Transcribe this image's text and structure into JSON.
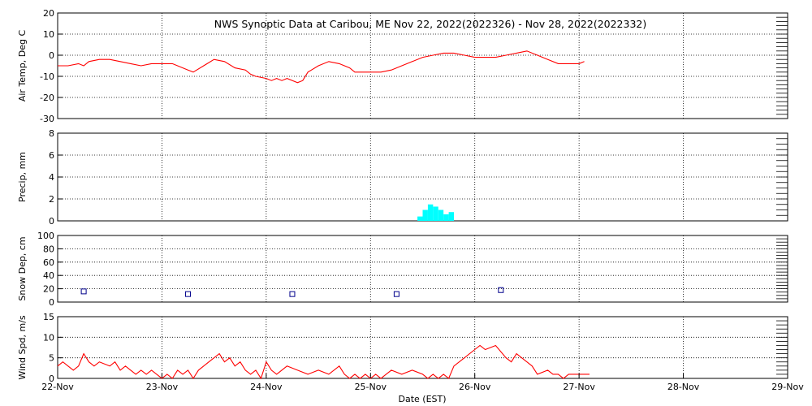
{
  "title": "NWS Synoptic Data at Caribou, ME   Nov 22, 2022(2022326) - Nov 28, 2022(2022332)",
  "x_axis": {
    "label": "Date (EST)",
    "ticks": [
      "22-Nov",
      "23-Nov",
      "24-Nov",
      "25-Nov",
      "26-Nov",
      "27-Nov",
      "28-Nov",
      "29-Nov"
    ]
  },
  "colors": {
    "air_temp": "#ff0000",
    "precip": "#00ffff",
    "snow": "#00008b",
    "wind": "#ff0000",
    "grid": "#000000"
  },
  "chart_data": [
    {
      "type": "line",
      "name": "air_temp",
      "ylabel": "Air Temp, Deg C",
      "ylim": [
        -30,
        20
      ],
      "yticks": [
        "20",
        "10",
        "0",
        "-10",
        "-20",
        "-30"
      ],
      "grid": true,
      "x_days": [
        0.0,
        0.1,
        0.2,
        0.25,
        0.3,
        0.4,
        0.5,
        0.6,
        0.7,
        0.8,
        0.9,
        1.0,
        1.1,
        1.2,
        1.25,
        1.3,
        1.4,
        1.5,
        1.6,
        1.7,
        1.8,
        1.85,
        1.9,
        2.0,
        2.05,
        2.1,
        2.15,
        2.2,
        2.3,
        2.35,
        2.4,
        2.5,
        2.6,
        2.7,
        2.8,
        2.85,
        2.9,
        3.0,
        3.1,
        3.2,
        3.3,
        3.4,
        3.5,
        3.6,
        3.7,
        3.8,
        3.9,
        4.0,
        4.1,
        4.2,
        4.3,
        4.4,
        4.5,
        4.6,
        4.7,
        4.8,
        4.9,
        5.0,
        5.05
      ],
      "values": [
        -5,
        -5,
        -4,
        -5,
        -3,
        -2,
        -2,
        -3,
        -4,
        -5,
        -4,
        -4,
        -4,
        -6,
        -7,
        -8,
        -5,
        -2,
        -3,
        -6,
        -7,
        -9,
        -10,
        -11,
        -12,
        -11,
        -12,
        -11,
        -13,
        -12,
        -8,
        -5,
        -3,
        -4,
        -6,
        -8,
        -8,
        -8,
        -8,
        -7,
        -5,
        -3,
        -1,
        0,
        1,
        1,
        0,
        -1,
        -1,
        -1,
        0,
        1,
        2,
        0,
        -2,
        -4,
        -4,
        -4,
        -3
      ]
    },
    {
      "type": "bar",
      "name": "precip",
      "ylabel": "Precip, mm",
      "ylim": [
        0,
        8
      ],
      "yticks": [
        "8",
        "6",
        "4",
        "2",
        "0"
      ],
      "grid": true,
      "x_days": [
        3.45,
        3.5,
        3.55,
        3.6,
        3.65,
        3.7,
        3.75
      ],
      "values": [
        0.4,
        1.0,
        1.5,
        1.3,
        1.0,
        0.6,
        0.8
      ]
    },
    {
      "type": "scatter",
      "name": "snow_depth",
      "ylabel": "Snow Dep, cm",
      "ylim": [
        0,
        100
      ],
      "yticks": [
        "100",
        "80",
        "60",
        "40",
        "20",
        "0"
      ],
      "grid": true,
      "x_days": [
        0.25,
        1.25,
        2.25,
        3.25,
        4.25
      ],
      "values": [
        16,
        12,
        12,
        12,
        18
      ]
    },
    {
      "type": "line",
      "name": "wind_speed",
      "ylabel": "Wind Spd, m/s",
      "ylim": [
        0,
        15
      ],
      "yticks": [
        "15",
        "10",
        "5",
        "0"
      ],
      "grid": true,
      "x_days": [
        0.0,
        0.05,
        0.1,
        0.15,
        0.2,
        0.25,
        0.3,
        0.35,
        0.4,
        0.5,
        0.55,
        0.6,
        0.65,
        0.7,
        0.75,
        0.8,
        0.85,
        0.9,
        1.0,
        1.05,
        1.1,
        1.15,
        1.2,
        1.25,
        1.3,
        1.35,
        1.4,
        1.45,
        1.5,
        1.55,
        1.6,
        1.65,
        1.7,
        1.75,
        1.8,
        1.85,
        1.9,
        1.95,
        2.0,
        2.05,
        2.1,
        2.2,
        2.3,
        2.4,
        2.5,
        2.6,
        2.7,
        2.75,
        2.8,
        2.85,
        2.9,
        2.95,
        3.0,
        3.05,
        3.1,
        3.15,
        3.2,
        3.3,
        3.4,
        3.5,
        3.55,
        3.6,
        3.65,
        3.7,
        3.75,
        3.8,
        3.9,
        4.0,
        4.05,
        4.1,
        4.2,
        4.3,
        4.35,
        4.4,
        4.45,
        4.5,
        4.55,
        4.6,
        4.7,
        4.75,
        4.8,
        4.85,
        4.9,
        5.0,
        5.1
      ],
      "values": [
        3,
        4,
        3,
        2,
        3,
        6,
        4,
        3,
        4,
        3,
        4,
        2,
        3,
        2,
        1,
        2,
        1,
        2,
        0,
        1,
        0,
        2,
        1,
        2,
        0,
        2,
        3,
        4,
        5,
        6,
        4,
        5,
        3,
        4,
        2,
        1,
        2,
        0,
        4,
        2,
        1,
        3,
        2,
        1,
        2,
        1,
        3,
        1,
        0,
        1,
        0,
        1,
        0,
        1,
        0,
        1,
        2,
        1,
        2,
        1,
        0,
        1,
        0,
        1,
        0,
        3,
        5,
        7,
        8,
        7,
        8,
        5,
        4,
        6,
        5,
        4,
        3,
        1,
        2,
        1,
        1,
        0,
        1,
        1,
        1
      ]
    }
  ]
}
